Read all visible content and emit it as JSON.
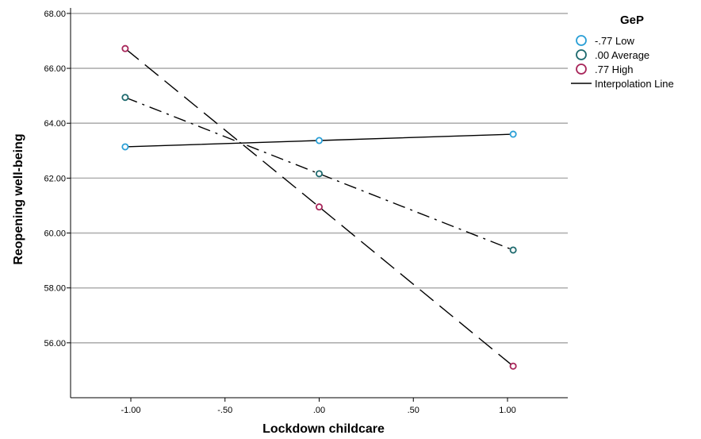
{
  "chart_data": {
    "type": "line",
    "xlabel": "Lockdown childcare",
    "ylabel": "Reopening well-being",
    "xlim": [
      -1.32,
      1.32
    ],
    "ylim": [
      54.0,
      68.2
    ],
    "x_ticks": [
      -1.0,
      -0.5,
      0.0,
      0.5,
      1.0
    ],
    "x_tick_labels": [
      "-1.00",
      "-.50",
      ".00",
      ".50",
      "1.00"
    ],
    "y_ticks": [
      56,
      58,
      60,
      62,
      64,
      66,
      68
    ],
    "y_tick_labels": [
      "56.00",
      "58.00",
      "60.00",
      "62.00",
      "64.00",
      "66.00",
      "68.00"
    ],
    "grid": "horizontal",
    "legend_position": "top-right",
    "legend_title": "GeP",
    "series": [
      {
        "name": "-.77 Low",
        "color": "#2a9fd6",
        "dash": "solid",
        "x": [
          -1.03,
          0.0,
          1.03
        ],
        "y": [
          63.14,
          63.37,
          63.6
        ]
      },
      {
        "name": ".00 Average",
        "color": "#1e6a6e",
        "dash": "dashdot",
        "x": [
          -1.03,
          0.0,
          1.03
        ],
        "y": [
          64.94,
          62.16,
          59.38
        ]
      },
      {
        "name": ".77 High",
        "color": "#a8265a",
        "dash": "dash",
        "x": [
          -1.03,
          0.0,
          1.03
        ],
        "y": [
          66.72,
          60.95,
          55.15
        ]
      }
    ],
    "interpolation_label": "Interpolation Line"
  }
}
